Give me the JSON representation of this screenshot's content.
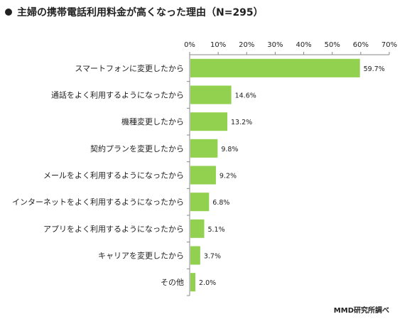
{
  "chart_data": {
    "type": "bar",
    "orientation": "horizontal",
    "title": "主婦の携帯電話利用料金が高くなった理由（N=295）",
    "categories": [
      "スマートフォンに変更したから",
      "通話をよく利用するようになったから",
      "機種変更したから",
      "契約プランを変更したから",
      "メールをよく利用するようになったから",
      "インターネットをよく利用するようになったから",
      "アプリをよく利用するようになったから",
      "キャリアを変更したから",
      "その他"
    ],
    "values": [
      59.7,
      14.6,
      13.2,
      9.8,
      9.2,
      6.8,
      5.1,
      3.7,
      2.0
    ],
    "value_labels": [
      "59.7%",
      "14.6%",
      "13.2%",
      "9.8%",
      "9.2%",
      "6.8%",
      "5.1%",
      "3.7%",
      "2.0%"
    ],
    "xlim": [
      0,
      70
    ],
    "x_ticks": [
      0,
      10,
      20,
      30,
      40,
      50,
      60,
      70
    ],
    "x_tick_labels": [
      "0%",
      "10%",
      "20%",
      "30%",
      "40%",
      "50%",
      "60%",
      "70%"
    ],
    "axis_position": "top",
    "grid": false,
    "bar_color": "#92d050",
    "source": "MMD研究所調べ"
  }
}
